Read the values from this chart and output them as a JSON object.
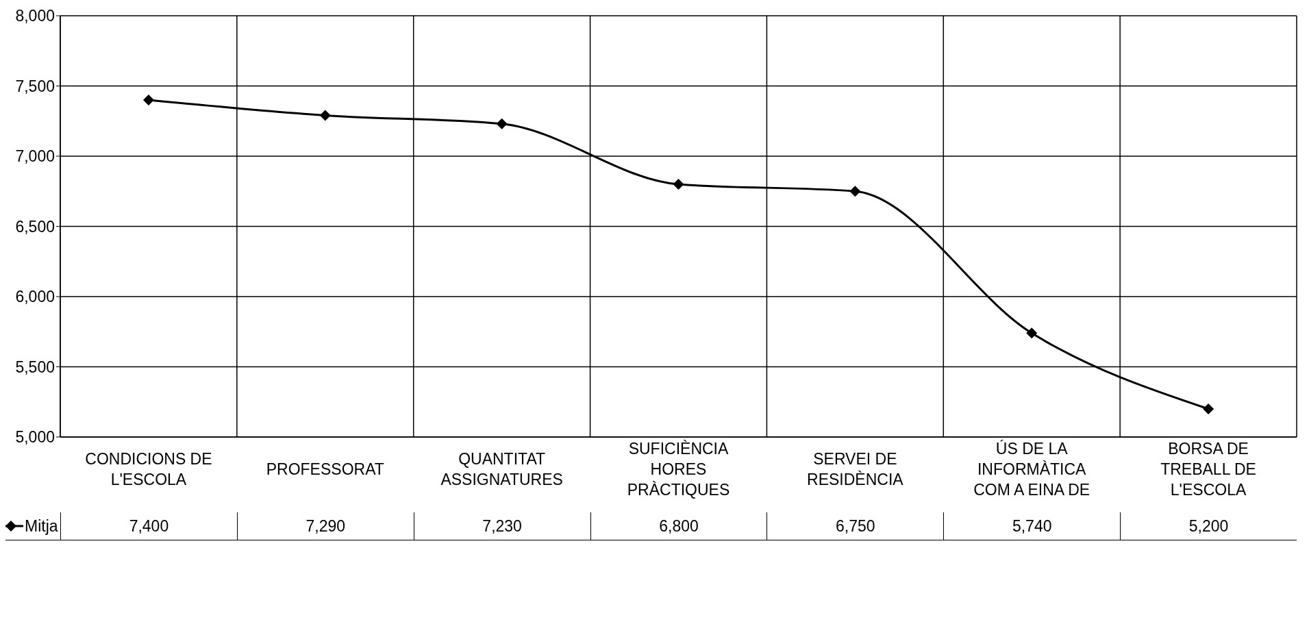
{
  "chart_data": {
    "type": "line",
    "categories": [
      "CONDICIONS DE L'ESCOLA",
      "PROFESSORAT",
      "QUANTITAT ASSIGNATURES",
      "SUFICIÈNCIA HORES PRÀCTIQUES",
      "SERVEI DE RESIDÈNCIA",
      "ÚS DE LA INFORMÀTICA COM A EINA DE",
      "BORSA DE TREBALL DE L'ESCOLA"
    ],
    "series": [
      {
        "name": "Mitja",
        "color": "#000000",
        "values": [
          7400,
          7290,
          7230,
          6800,
          6750,
          5740,
          5200
        ],
        "value_labels": [
          "7,400",
          "7,290",
          "7,230",
          "6,800",
          "6,750",
          "5,740",
          "5,200"
        ]
      }
    ],
    "ylim": [
      5000,
      8000
    ],
    "yticks": [
      {
        "value": 5000,
        "label": "5,000"
      },
      {
        "value": 5500,
        "label": "5,500"
      },
      {
        "value": 6000,
        "label": "6,000"
      },
      {
        "value": 6500,
        "label": "6,500"
      },
      {
        "value": 7000,
        "label": "7,000"
      },
      {
        "value": 7500,
        "label": "7,500"
      },
      {
        "value": 8000,
        "label": "8,000"
      }
    ],
    "grid": true,
    "legend": "bottom left",
    "marker": "diamond",
    "line_style": "solid"
  }
}
